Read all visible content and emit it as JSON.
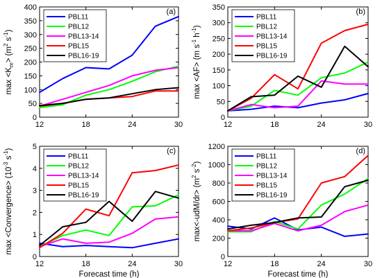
{
  "chart_data": [
    {
      "type": "line",
      "panel_letter": "(a)",
      "ylabel_parts": [
        "max <K",
        "m",
        "> (m",
        "2",
        " s",
        "-1",
        ")"
      ],
      "xlabel": "",
      "x": [
        12,
        15,
        18,
        21,
        24,
        27,
        30
      ],
      "xlim": [
        12,
        30
      ],
      "ylim": [
        0,
        400
      ],
      "yticks": [
        0,
        50,
        100,
        150,
        200,
        250,
        300,
        350,
        400
      ],
      "xticks": [
        12,
        18,
        24,
        30
      ],
      "legend_position": "top-left",
      "series": [
        {
          "name": "PBL11",
          "color": "#0000ff",
          "values": [
            90,
            140,
            180,
            175,
            225,
            330,
            365
          ]
        },
        {
          "name": "PBL12",
          "color": "#00ff00",
          "values": [
            35,
            45,
            80,
            100,
            130,
            165,
            185
          ]
        },
        {
          "name": "PBL13-14",
          "color": "#ff00ff",
          "values": [
            40,
            65,
            90,
            115,
            150,
            170,
            180
          ]
        },
        {
          "name": "PBL15",
          "color": "#ff0000",
          "values": [
            40,
            50,
            65,
            70,
            75,
            95,
            95
          ]
        },
        {
          "name": "PBL16-19",
          "color": "#000000",
          "values": [
            42,
            50,
            65,
            70,
            85,
            100,
            107
          ]
        }
      ]
    },
    {
      "type": "line",
      "panel_letter": "(b)",
      "ylabel_parts": [
        "max <AF> (m s",
        "-1",
        " h",
        "-1",
        ")"
      ],
      "xlabel": "",
      "x": [
        12,
        15,
        18,
        21,
        24,
        27,
        30
      ],
      "xlim": [
        12,
        30
      ],
      "ylim": [
        0,
        350
      ],
      "yticks": [
        0,
        50,
        100,
        150,
        200,
        250,
        300,
        350
      ],
      "xticks": [
        12,
        18,
        24,
        30
      ],
      "legend_position": "top-left",
      "series": [
        {
          "name": "PBL11",
          "color": "#0000ff",
          "values": [
            20,
            25,
            35,
            30,
            45,
            55,
            75
          ]
        },
        {
          "name": "PBL12",
          "color": "#00ff00",
          "values": [
            20,
            35,
            85,
            70,
            125,
            140,
            175
          ]
        },
        {
          "name": "PBL13-14",
          "color": "#ff00ff",
          "values": [
            20,
            40,
            30,
            35,
            115,
            105,
            105
          ]
        },
        {
          "name": "PBL15",
          "color": "#ff0000",
          "values": [
            20,
            60,
            135,
            90,
            235,
            275,
            295
          ]
        },
        {
          "name": "PBL16-19",
          "color": "#000000",
          "values": [
            20,
            65,
            70,
            130,
            95,
            225,
            160
          ]
        }
      ]
    },
    {
      "type": "line",
      "panel_letter": "(c)",
      "ylabel_parts": [
        "max <Convergence> (10",
        "-3",
        " s",
        "-1",
        ")"
      ],
      "xlabel": "Forecast time (h)",
      "x": [
        12,
        15,
        18,
        21,
        24,
        27,
        30
      ],
      "xlim": [
        12,
        30
      ],
      "ylim": [
        0,
        5
      ],
      "yticks": [
        0,
        1,
        2,
        3,
        4,
        5
      ],
      "xticks": [
        12,
        18,
        24,
        30
      ],
      "legend_position": "top-left",
      "series": [
        {
          "name": "PBL11",
          "color": "#0000ff",
          "values": [
            0.6,
            0.45,
            0.5,
            0.45,
            0.4,
            0.6,
            0.8
          ]
        },
        {
          "name": "PBL12",
          "color": "#00ff00",
          "values": [
            0.45,
            0.95,
            1.2,
            0.95,
            2.25,
            2.3,
            2.8
          ]
        },
        {
          "name": "PBL13-14",
          "color": "#ff00ff",
          "values": [
            0.45,
            0.8,
            0.6,
            0.65,
            1.05,
            1.7,
            1.8
          ]
        },
        {
          "name": "PBL15",
          "color": "#ff0000",
          "values": [
            0.4,
            1.05,
            2.15,
            1.85,
            3.8,
            3.9,
            4.15
          ]
        },
        {
          "name": "PBL16-19",
          "color": "#000000",
          "values": [
            0.5,
            1.35,
            1.55,
            2.5,
            1.6,
            2.95,
            2.65
          ]
        }
      ]
    },
    {
      "type": "line",
      "panel_letter": "(d)",
      "ylabel_parts": [
        "max<-udM/dr> (m",
        "2",
        " s",
        "-2",
        ")"
      ],
      "xlabel": "Forecast time (h)",
      "x": [
        12,
        15,
        18,
        21,
        24,
        27,
        30
      ],
      "xlim": [
        12,
        30
      ],
      "ylim": [
        0,
        1200
      ],
      "yticks": [
        0,
        200,
        400,
        600,
        800,
        1000,
        1200
      ],
      "xticks": [
        12,
        18,
        24,
        30
      ],
      "legend_position": "top-left",
      "series": [
        {
          "name": "PBL11",
          "color": "#0000ff",
          "values": [
            330,
            300,
            420,
            290,
            320,
            220,
            245
          ]
        },
        {
          "name": "PBL12",
          "color": "#00ff00",
          "values": [
            270,
            270,
            380,
            300,
            560,
            680,
            850
          ]
        },
        {
          "name": "PBL13-14",
          "color": "#ff00ff",
          "values": [
            280,
            280,
            360,
            280,
            340,
            490,
            560
          ]
        },
        {
          "name": "PBL15",
          "color": "#ff0000",
          "values": [
            280,
            310,
            370,
            410,
            800,
            870,
            1100
          ]
        },
        {
          "name": "PBL16-19",
          "color": "#000000",
          "values": [
            300,
            340,
            370,
            420,
            430,
            760,
            830
          ]
        }
      ]
    }
  ]
}
